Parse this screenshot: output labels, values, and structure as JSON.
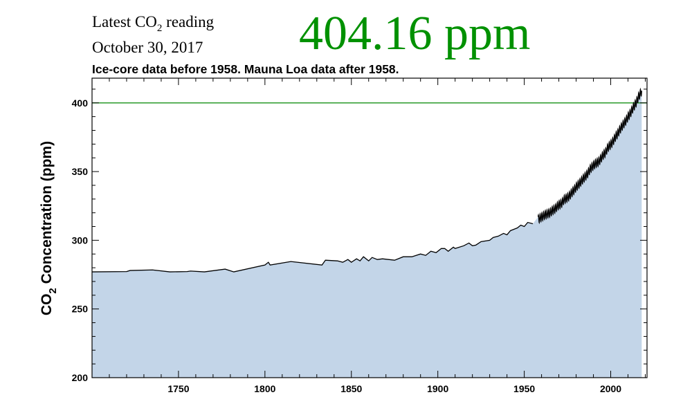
{
  "header": {
    "latest_prefix": "Latest CO",
    "latest_sub": "2",
    "latest_suffix": " reading",
    "date": "October 30, 2017",
    "reading": "404.16 ppm",
    "reading_color": "#009100",
    "subtitle": "Ice-core data before 1958. Mauna Loa data after 1958."
  },
  "chart_data": {
    "type": "area",
    "title": "",
    "xlabel": "",
    "ylabel_prefix": "CO",
    "ylabel_sub": "2",
    "ylabel_suffix": " Concentration (ppm)",
    "xlim": [
      1700,
      2021
    ],
    "ylim": [
      200,
      418
    ],
    "x_ticks": [
      "1750",
      "1800",
      "1850",
      "1900",
      "1950",
      "2000"
    ],
    "y_ticks": [
      "200",
      "250",
      "300",
      "350",
      "400"
    ],
    "grid": false,
    "fill_color": "#c3d5e8",
    "line_color": "#000000",
    "reference_line": {
      "value": 400,
      "color": "#2a9a2a"
    },
    "series": [
      {
        "source": "ice-core",
        "x": [
          1700,
          1720,
          1722,
          1735,
          1745,
          1755,
          1757,
          1765,
          1777,
          1782,
          1800,
          1802,
          1803,
          1815,
          1833,
          1835,
          1842,
          1845,
          1848,
          1850,
          1853,
          1855,
          1857,
          1860,
          1862,
          1865,
          1868,
          1875,
          1880,
          1885,
          1890,
          1893,
          1896,
          1899,
          1902,
          1904,
          1906,
          1909,
          1910,
          1915,
          1918,
          1920,
          1922,
          1925,
          1930,
          1932,
          1935,
          1938,
          1940,
          1942,
          1944,
          1946,
          1948,
          1950,
          1952,
          1955
        ],
        "y": [
          277,
          277.2,
          278,
          278.4,
          277,
          277.2,
          277.6,
          277,
          279,
          277,
          282,
          284,
          282,
          284.5,
          282,
          285.5,
          285,
          284,
          286,
          284,
          286.5,
          285,
          288,
          285,
          287.5,
          286,
          286.5,
          285.5,
          288,
          288,
          290,
          289,
          292,
          291,
          294,
          294,
          292,
          295,
          294,
          296,
          298,
          296,
          296.5,
          299,
          300,
          302,
          303,
          305,
          304,
          307,
          308,
          309,
          311,
          310,
          313,
          312
        ]
      },
      {
        "source": "Mauna Loa",
        "seasonal_amplitude_ppm": 3,
        "x": [
          1958,
          1959,
          1960,
          1961,
          1962,
          1963,
          1964,
          1965,
          1966,
          1967,
          1968,
          1969,
          1970,
          1971,
          1972,
          1973,
          1974,
          1975,
          1976,
          1977,
          1978,
          1979,
          1980,
          1981,
          1982,
          1983,
          1984,
          1985,
          1986,
          1987,
          1988,
          1989,
          1990,
          1991,
          1992,
          1993,
          1994,
          1995,
          1996,
          1997,
          1998,
          1999,
          2000,
          2001,
          2002,
          2003,
          2004,
          2005,
          2006,
          2007,
          2008,
          2009,
          2010,
          2011,
          2012,
          2013,
          2014,
          2015,
          2016,
          2017
        ],
        "y": [
          315.3,
          316.0,
          316.9,
          317.6,
          318.5,
          319.0,
          319.6,
          320.0,
          321.4,
          322.2,
          323.0,
          324.6,
          325.7,
          326.3,
          327.5,
          329.7,
          330.2,
          331.1,
          332.1,
          333.8,
          335.4,
          336.8,
          338.7,
          340.1,
          341.4,
          343.0,
          344.6,
          346.0,
          347.4,
          349.2,
          351.6,
          353.1,
          354.4,
          355.6,
          356.4,
          357.1,
          358.8,
          360.8,
          362.6,
          363.7,
          366.7,
          368.4,
          369.7,
          371.3,
          373.5,
          375.8,
          377.5,
          379.8,
          381.9,
          383.8,
          385.6,
          387.4,
          389.9,
          391.6,
          393.9,
          396.5,
          398.6,
          400.8,
          404.2,
          406.5
        ]
      }
    ]
  }
}
